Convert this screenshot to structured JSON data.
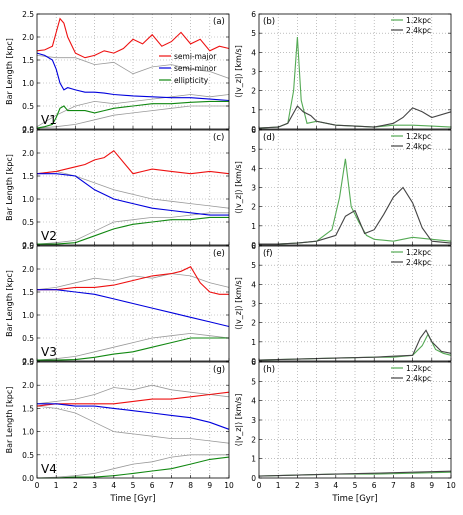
{
  "figure": {
    "left_ylabel": "Bar Length [kpc]",
    "right_ylabel": "⟨|v_z|⟩ [km/s]",
    "xlabel": "Time [Gyr]"
  },
  "colors": {
    "semi_major": "#ee1111",
    "semi_minor": "#0000dd",
    "ellipticity": "#118811",
    "gray": "#9a9a9a",
    "light_green": "#55aa55",
    "dark_gray": "#444444",
    "grid": "#999999"
  },
  "chart_data": [
    {
      "type": "line",
      "panel": "a",
      "model": "V1",
      "xlim": [
        0,
        10
      ],
      "ylim": [
        0,
        2.5
      ],
      "yticks": [
        "0.0",
        "0.5",
        "1.0",
        "1.5",
        "2.0",
        "2.5"
      ],
      "legend": [
        "semi-major",
        "semi-minor",
        "ellipticity"
      ],
      "series": [
        {
          "name": "semi-major",
          "x": [
            0,
            0.4,
            0.8,
            1.0,
            1.2,
            1.4,
            1.6,
            2.0,
            2.5,
            3,
            3.5,
            4,
            4.5,
            5,
            5.5,
            6,
            6.5,
            7,
            7.5,
            8,
            8.5,
            9,
            9.5,
            10
          ],
          "y": [
            1.7,
            1.72,
            1.8,
            2.1,
            2.4,
            2.3,
            2.0,
            1.65,
            1.55,
            1.6,
            1.7,
            1.65,
            1.75,
            1.95,
            1.85,
            2.05,
            1.8,
            1.9,
            2.1,
            1.85,
            1.95,
            1.7,
            1.8,
            1.75
          ]
        },
        {
          "name": "semi-minor",
          "x": [
            0,
            0.4,
            0.8,
            1.0,
            1.2,
            1.4,
            1.6,
            2.0,
            2.5,
            3,
            3.5,
            4,
            5,
            6,
            7,
            8,
            9,
            10
          ],
          "y": [
            1.65,
            1.6,
            1.5,
            1.3,
            1.0,
            0.85,
            0.9,
            0.85,
            0.8,
            0.8,
            0.78,
            0.75,
            0.72,
            0.7,
            0.68,
            0.68,
            0.65,
            0.62
          ]
        },
        {
          "name": "ellipticity",
          "x": [
            0,
            0.4,
            0.8,
            1.0,
            1.2,
            1.4,
            1.6,
            2.0,
            2.5,
            3,
            3.5,
            4,
            5,
            6,
            7,
            8,
            9,
            10
          ],
          "y": [
            0.02,
            0.05,
            0.1,
            0.25,
            0.45,
            0.5,
            0.4,
            0.4,
            0.4,
            0.35,
            0.4,
            0.45,
            0.5,
            0.55,
            0.55,
            0.58,
            0.6,
            0.6
          ]
        }
      ],
      "gray_series": [
        {
          "x": [
            0,
            1,
            2,
            3,
            4,
            5,
            6,
            7,
            8,
            9,
            10
          ],
          "y": [
            1.6,
            1.55,
            1.55,
            1.4,
            1.45,
            1.2,
            1.35,
            1.4,
            1.3,
            1.25,
            1.1
          ]
        },
        {
          "x": [
            0,
            1,
            2,
            3,
            4,
            5,
            6,
            7,
            8,
            9,
            10
          ],
          "y": [
            0.05,
            0.3,
            0.5,
            0.6,
            0.55,
            0.6,
            0.65,
            0.7,
            0.75,
            0.7,
            0.75
          ]
        },
        {
          "x": [
            0,
            1,
            2,
            3,
            4,
            5,
            6,
            7,
            8,
            9,
            10
          ],
          "y": [
            0.02,
            0.05,
            0.1,
            0.2,
            0.3,
            0.35,
            0.4,
            0.45,
            0.5,
            0.5,
            0.5
          ]
        }
      ]
    },
    {
      "type": "line",
      "panel": "b",
      "xlim": [
        0,
        10
      ],
      "ylim": [
        0,
        6
      ],
      "yticks": [
        "0",
        "1",
        "2",
        "3",
        "4",
        "5",
        "6"
      ],
      "legend": [
        "1.2kpc",
        "2.4kpc"
      ],
      "series": [
        {
          "name": "1.2kpc",
          "x": [
            0,
            1,
            1.5,
            1.8,
            2.0,
            2.2,
            2.5,
            3,
            4,
            5,
            6,
            7,
            8,
            9,
            10
          ],
          "y": [
            0.05,
            0.1,
            0.3,
            2.0,
            4.8,
            1.5,
            0.3,
            0.4,
            0.2,
            0.15,
            0.1,
            0.2,
            0.2,
            0.15,
            0.1
          ]
        },
        {
          "name": "2.4kpc",
          "x": [
            0,
            1,
            1.5,
            2.0,
            2.3,
            2.7,
            3,
            4,
            5,
            6,
            7,
            7.5,
            8,
            8.5,
            9,
            10
          ],
          "y": [
            0.05,
            0.1,
            0.3,
            1.2,
            0.9,
            0.7,
            0.4,
            0.2,
            0.15,
            0.1,
            0.3,
            0.6,
            1.1,
            0.9,
            0.6,
            0.9
          ]
        }
      ]
    },
    {
      "type": "line",
      "panel": "c",
      "model": "V2",
      "xlim": [
        0,
        10
      ],
      "ylim": [
        0,
        2.5
      ],
      "yticks": [
        "0.0",
        "0.5",
        "1.0",
        "1.5",
        "2.0",
        "2.5"
      ],
      "series": [
        {
          "name": "semi-major",
          "x": [
            0,
            1,
            2,
            2.5,
            3,
            3.5,
            4,
            5,
            5.5,
            6,
            7,
            8,
            9,
            10
          ],
          "y": [
            1.55,
            1.6,
            1.7,
            1.75,
            1.85,
            1.9,
            2.05,
            1.55,
            1.6,
            1.65,
            1.6,
            1.55,
            1.6,
            1.55
          ]
        },
        {
          "name": "semi-minor",
          "x": [
            0,
            1,
            2,
            3,
            4,
            5,
            6,
            7,
            8,
            9,
            10
          ],
          "y": [
            1.55,
            1.55,
            1.5,
            1.2,
            1.0,
            0.9,
            0.8,
            0.75,
            0.7,
            0.65,
            0.65
          ]
        },
        {
          "name": "ellipticity",
          "x": [
            0,
            1,
            2,
            3,
            4,
            5,
            6,
            7,
            8,
            9,
            10
          ],
          "y": [
            0.02,
            0.02,
            0.05,
            0.2,
            0.35,
            0.45,
            0.5,
            0.55,
            0.55,
            0.6,
            0.6
          ]
        }
      ],
      "gray_series": [
        {
          "x": [
            0,
            1,
            2,
            3,
            4,
            5,
            6,
            7,
            8,
            9,
            10
          ],
          "y": [
            1.55,
            1.6,
            1.5,
            1.35,
            1.2,
            1.1,
            1.0,
            0.95,
            0.9,
            0.85,
            0.8
          ]
        },
        {
          "x": [
            0,
            1,
            2,
            3,
            4,
            5,
            6,
            7,
            8,
            9,
            10
          ],
          "y": [
            0.02,
            0.05,
            0.1,
            0.3,
            0.5,
            0.55,
            0.6,
            0.6,
            0.65,
            0.7,
            0.7
          ]
        }
      ]
    },
    {
      "type": "line",
      "panel": "d",
      "xlim": [
        0,
        10
      ],
      "ylim": [
        0,
        6
      ],
      "yticks": [
        "0",
        "1",
        "2",
        "3",
        "4",
        "5",
        "6"
      ],
      "legend": [
        "1.2kpc",
        "2.4kpc"
      ],
      "series": [
        {
          "name": "1.2kpc",
          "x": [
            0,
            1,
            2,
            3,
            3.8,
            4.2,
            4.5,
            4.8,
            5.2,
            5.6,
            6,
            7,
            8,
            9,
            10
          ],
          "y": [
            0.05,
            0.05,
            0.1,
            0.2,
            0.8,
            2.5,
            4.5,
            2.0,
            1.2,
            0.5,
            0.3,
            0.2,
            0.4,
            0.3,
            0.2
          ]
        },
        {
          "name": "2.4kpc",
          "x": [
            0,
            1,
            2,
            3,
            4,
            4.5,
            5,
            5.5,
            6,
            6.5,
            7,
            7.5,
            8,
            8.5,
            9,
            10
          ],
          "y": [
            0.05,
            0.05,
            0.1,
            0.2,
            0.5,
            1.5,
            1.8,
            0.6,
            0.8,
            1.6,
            2.5,
            3.0,
            2.2,
            0.9,
            0.2,
            0.1
          ]
        }
      ]
    },
    {
      "type": "line",
      "panel": "e",
      "model": "V3",
      "xlim": [
        0,
        10
      ],
      "ylim": [
        0,
        2.5
      ],
      "yticks": [
        "0.0",
        "0.5",
        "1.0",
        "1.5",
        "2.0",
        "2.5"
      ],
      "series": [
        {
          "name": "semi-major",
          "x": [
            0,
            1,
            2,
            3,
            4,
            5,
            6,
            7,
            7.5,
            8,
            8.5,
            9,
            9.5,
            10
          ],
          "y": [
            1.55,
            1.55,
            1.6,
            1.6,
            1.65,
            1.75,
            1.85,
            1.9,
            1.95,
            2.05,
            1.7,
            1.5,
            1.45,
            1.45
          ]
        },
        {
          "name": "semi-minor",
          "x": [
            0,
            1,
            2,
            3,
            4,
            5,
            6,
            7,
            8,
            9,
            10
          ],
          "y": [
            1.55,
            1.55,
            1.5,
            1.45,
            1.35,
            1.25,
            1.15,
            1.05,
            0.95,
            0.85,
            0.75
          ]
        },
        {
          "name": "ellipticity",
          "x": [
            0,
            1,
            2,
            3,
            4,
            5,
            6,
            7,
            8,
            9,
            10
          ],
          "y": [
            0.02,
            0.02,
            0.03,
            0.08,
            0.15,
            0.2,
            0.3,
            0.4,
            0.5,
            0.5,
            0.5
          ]
        }
      ],
      "gray_series": [
        {
          "x": [
            0,
            1,
            2,
            3,
            4,
            5,
            6,
            7,
            8,
            9,
            10
          ],
          "y": [
            1.55,
            1.6,
            1.7,
            1.8,
            1.75,
            1.85,
            1.8,
            1.9,
            1.85,
            1.7,
            1.6
          ]
        },
        {
          "x": [
            0,
            1,
            2,
            3,
            4,
            5,
            6,
            7,
            8,
            9,
            10
          ],
          "y": [
            0.02,
            0.05,
            0.1,
            0.2,
            0.3,
            0.4,
            0.5,
            0.55,
            0.6,
            0.55,
            0.5
          ]
        }
      ]
    },
    {
      "type": "line",
      "panel": "f",
      "xlim": [
        0,
        10
      ],
      "ylim": [
        0,
        6
      ],
      "yticks": [
        "0",
        "1",
        "2",
        "3",
        "4",
        "5",
        "6"
      ],
      "legend": [
        "1.2kpc",
        "2.4kpc"
      ],
      "series": [
        {
          "name": "1.2kpc",
          "x": [
            0,
            2,
            4,
            6,
            7,
            8,
            8.5,
            8.8,
            9.2,
            9.6,
            10
          ],
          "y": [
            0.05,
            0.1,
            0.15,
            0.2,
            0.2,
            0.3,
            0.8,
            1.4,
            0.6,
            0.4,
            0.3
          ]
        },
        {
          "name": "2.4kpc",
          "x": [
            0,
            2,
            4,
            6,
            7,
            8,
            8.4,
            8.7,
            9,
            9.5,
            10
          ],
          "y": [
            0.05,
            0.1,
            0.15,
            0.2,
            0.25,
            0.3,
            1.2,
            1.6,
            1.0,
            0.5,
            0.4
          ]
        }
      ]
    },
    {
      "type": "line",
      "panel": "g",
      "model": "V4",
      "xlim": [
        0,
        10
      ],
      "ylim": [
        0,
        2.5
      ],
      "yticks": [
        "0.0",
        "0.5",
        "1.0",
        "1.5",
        "2.0",
        "2.5"
      ],
      "series": [
        {
          "name": "semi-major",
          "x": [
            0,
            1,
            2,
            3,
            4,
            5,
            6,
            7,
            8,
            9,
            10
          ],
          "y": [
            1.55,
            1.6,
            1.6,
            1.6,
            1.6,
            1.65,
            1.7,
            1.7,
            1.75,
            1.8,
            1.85
          ]
        },
        {
          "name": "semi-minor",
          "x": [
            0,
            1,
            2,
            3,
            4,
            5,
            6,
            7,
            8,
            9,
            10
          ],
          "y": [
            1.6,
            1.6,
            1.55,
            1.55,
            1.5,
            1.45,
            1.4,
            1.35,
            1.3,
            1.2,
            1.05
          ]
        },
        {
          "name": "ellipticity",
          "x": [
            0,
            1,
            2,
            3,
            4,
            5,
            6,
            7,
            8,
            9,
            10
          ],
          "y": [
            0.0,
            0.0,
            0.02,
            0.02,
            0.05,
            0.1,
            0.15,
            0.2,
            0.3,
            0.4,
            0.45
          ]
        }
      ],
      "gray_series": [
        {
          "x": [
            0,
            1,
            2,
            3,
            4,
            5,
            6,
            7,
            8,
            9,
            10
          ],
          "y": [
            1.6,
            1.65,
            1.7,
            1.8,
            1.95,
            1.9,
            2.0,
            1.9,
            1.85,
            1.8,
            1.75
          ]
        },
        {
          "x": [
            0,
            1,
            2,
            3,
            4,
            5,
            6,
            7,
            8,
            9,
            10
          ],
          "y": [
            1.55,
            1.5,
            1.4,
            1.2,
            1.0,
            0.95,
            0.9,
            0.85,
            0.85,
            0.8,
            0.75
          ]
        },
        {
          "x": [
            0,
            1,
            2,
            3,
            4,
            5,
            6,
            7,
            8,
            9,
            10
          ],
          "y": [
            0.0,
            0.02,
            0.05,
            0.1,
            0.2,
            0.3,
            0.35,
            0.45,
            0.5,
            0.5,
            0.5
          ]
        }
      ]
    },
    {
      "type": "line",
      "panel": "h",
      "xlim": [
        0,
        10
      ],
      "ylim": [
        0,
        6
      ],
      "yticks": [
        "0",
        "1",
        "2",
        "3",
        "4",
        "5",
        "6"
      ],
      "legend": [
        "1.2kpc",
        "2.4kpc"
      ],
      "series": [
        {
          "name": "1.2kpc",
          "x": [
            0,
            2,
            4,
            6,
            8,
            10
          ],
          "y": [
            0.1,
            0.15,
            0.2,
            0.2,
            0.25,
            0.3
          ]
        },
        {
          "name": "2.4kpc",
          "x": [
            0,
            2,
            4,
            6,
            8,
            10
          ],
          "y": [
            0.1,
            0.15,
            0.2,
            0.25,
            0.3,
            0.35
          ]
        }
      ]
    }
  ]
}
